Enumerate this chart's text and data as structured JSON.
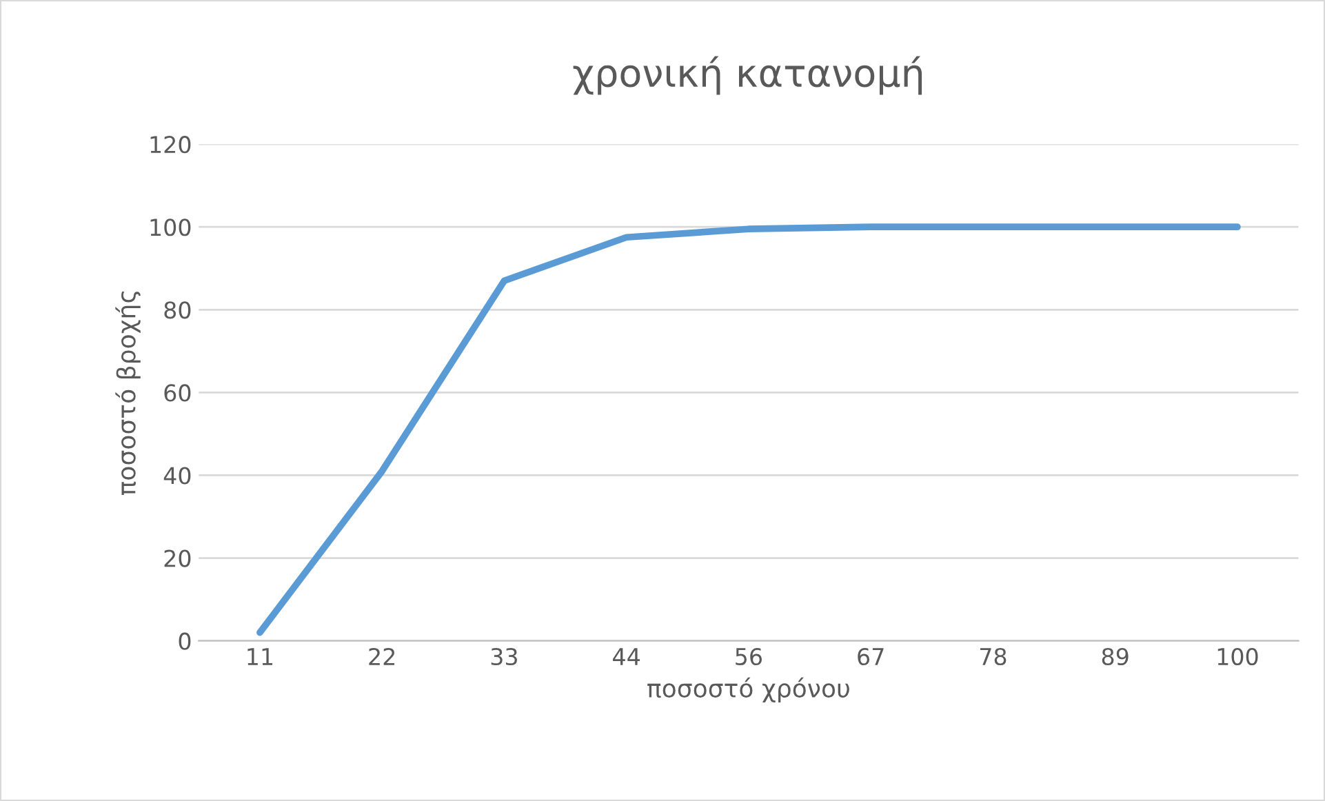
{
  "chart_data": {
    "type": "line",
    "title": "χρονική κατανομή",
    "xlabel": "ποσοστό χρόνου",
    "ylabel": "ποσοστό βροχής",
    "categories": [
      "11",
      "22",
      "33",
      "44",
      "56",
      "67",
      "78",
      "89",
      "100"
    ],
    "series": [
      {
        "color": "#5b9bd5",
        "values": [
          2,
          41,
          87,
          97.5,
          99.5,
          100,
          100,
          100,
          100
        ]
      }
    ],
    "ylim": [
      0,
      120
    ],
    "yticks": [
      0,
      20,
      40,
      60,
      80,
      100,
      120
    ],
    "grid": "y",
    "marker": "none",
    "line_style": "solid"
  }
}
